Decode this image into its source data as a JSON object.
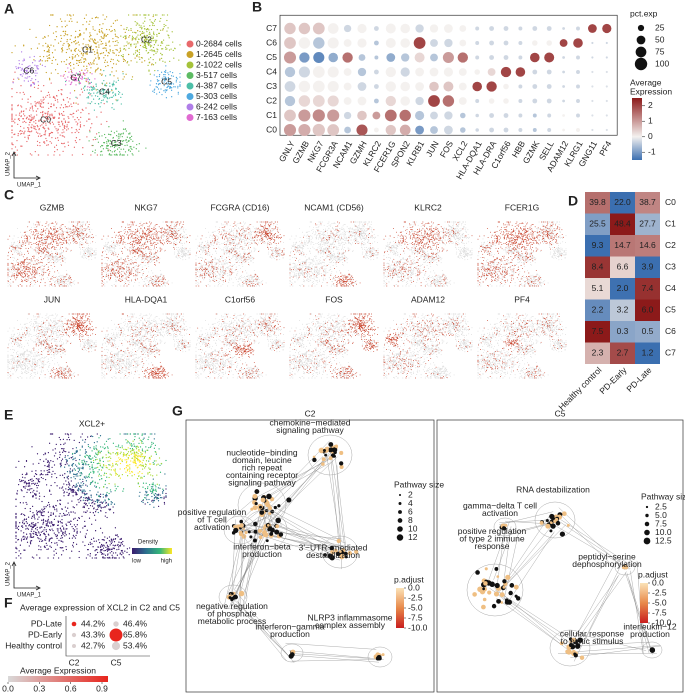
{
  "panels": {
    "A": {
      "label": "A",
      "clusters": [
        "C0",
        "C1",
        "C2",
        "C3",
        "C4",
        "C5",
        "C6",
        "C7"
      ],
      "legend": [
        "0-2684 cells",
        "1-2645 cells",
        "2-1022 cells",
        "3-517 cells",
        "4-387 cells",
        "5-303 cells",
        "6-242 cells",
        "7-163 cells"
      ],
      "colors": [
        "#e8696b",
        "#c9a227",
        "#a5c23a",
        "#5dbb63",
        "#4dbfa8",
        "#4ea9e0",
        "#b07ee8",
        "#e06ad1"
      ],
      "x_label": "UMAP_1",
      "y_label": "UMAP_2"
    },
    "B": {
      "label": "B",
      "genes": [
        "GNLY",
        "GZMB",
        "NKG7",
        "FCGR3A",
        "NCAM1",
        "GZMH",
        "KLRC2",
        "FCER1G",
        "SPON2",
        "KLRB1",
        "JUN",
        "FOS",
        "XCL2",
        "HLA-DQA1",
        "HLA-DRA",
        "C1orf56",
        "HBB",
        "GZMK",
        "SELL",
        "ADAM12",
        "KLRG1",
        "GNG11",
        "PF4"
      ],
      "rows": [
        "C0",
        "C1",
        "C2",
        "C3",
        "C4",
        "C5",
        "C6",
        "C7"
      ],
      "expression": [
        [
          1,
          0.8,
          0.5,
          0.5,
          -0.5,
          1.8,
          0,
          0.5,
          0.8,
          -1,
          -0.5,
          -0.3,
          -0.5,
          -0.3,
          -0.3,
          -0.3,
          -0.3,
          -0.5,
          -0.3,
          0,
          0,
          -0.2,
          -0.2
        ],
        [
          0.5,
          1,
          1.2,
          1,
          -0.3,
          0.5,
          1,
          1.5,
          1.5,
          -0.5,
          -0.3,
          -0.3,
          -0.5,
          -0.3,
          -0.3,
          -0.3,
          -0.3,
          -0.5,
          -0.3,
          0,
          -0.3,
          -0.2,
          -0.2
        ],
        [
          -0.5,
          0.3,
          0.3,
          0.3,
          0,
          0,
          -0.5,
          0.3,
          0,
          -0.3,
          2,
          1.5,
          0,
          -0.3,
          0,
          0,
          -0.3,
          -0.3,
          -0.3,
          -0.3,
          -0.3,
          -0.2,
          -0.2
        ],
        [
          -0.3,
          0,
          0,
          0,
          0,
          -0.3,
          -0.3,
          0,
          0,
          0,
          0.5,
          0.5,
          0,
          2,
          2,
          0,
          -0.3,
          -0.3,
          -0.3,
          -0.3,
          -0.3,
          -0.2,
          -0.2
        ],
        [
          -0.5,
          -0.3,
          0,
          0,
          0,
          -0.5,
          -0.3,
          0,
          -0.3,
          0,
          0,
          0,
          0,
          0,
          0.3,
          2,
          2,
          -0.3,
          -0.3,
          -0.3,
          -0.3,
          -0.2,
          -0.2
        ],
        [
          1,
          -1,
          -1.2,
          -0.8,
          1.5,
          -0.5,
          -0.5,
          -0.8,
          -0.5,
          0.3,
          -0.5,
          1,
          1.5,
          -0.3,
          -0.3,
          -0.3,
          -0.3,
          2,
          2,
          -0.3,
          -0.3,
          -0.3,
          -0.3
        ],
        [
          0.5,
          0,
          -0.5,
          0,
          0,
          0,
          -0.5,
          0,
          0,
          2,
          -0.3,
          -0.3,
          0,
          -0.3,
          -0.3,
          -0.3,
          -0.3,
          0,
          0,
          2,
          2,
          -0.3,
          -0.3
        ],
        [
          0.5,
          0.5,
          0.5,
          0,
          -0.3,
          0,
          -0.3,
          0,
          0,
          -0.3,
          0,
          0,
          0,
          -0.3,
          -0.3,
          -0.3,
          -0.3,
          -0.3,
          -0.3,
          -0.3,
          -0.3,
          2,
          2
        ]
      ],
      "pct_exp": [
        [
          95,
          95,
          98,
          90,
          30,
          80,
          15,
          70,
          75,
          50,
          40,
          50,
          20,
          8,
          15,
          15,
          10,
          10,
          10,
          5,
          10,
          3,
          3
        ],
        [
          90,
          95,
          98,
          95,
          35,
          60,
          40,
          90,
          85,
          55,
          40,
          45,
          20,
          8,
          15,
          15,
          10,
          10,
          10,
          5,
          10,
          3,
          3
        ],
        [
          70,
          85,
          90,
          80,
          40,
          50,
          15,
          70,
          60,
          45,
          90,
          85,
          40,
          10,
          20,
          20,
          10,
          15,
          15,
          5,
          10,
          3,
          3
        ],
        [
          75,
          85,
          90,
          80,
          40,
          50,
          15,
          70,
          60,
          50,
          60,
          65,
          40,
          60,
          70,
          20,
          10,
          15,
          15,
          5,
          10,
          3,
          3
        ],
        [
          70,
          80,
          90,
          80,
          40,
          45,
          15,
          70,
          55,
          50,
          50,
          55,
          40,
          20,
          40,
          70,
          60,
          15,
          15,
          5,
          10,
          3,
          3
        ],
        [
          95,
          70,
          80,
          60,
          70,
          30,
          10,
          50,
          45,
          65,
          40,
          80,
          70,
          10,
          15,
          15,
          10,
          60,
          65,
          5,
          10,
          3,
          3
        ],
        [
          90,
          85,
          85,
          80,
          40,
          55,
          15,
          65,
          60,
          90,
          40,
          45,
          30,
          10,
          15,
          15,
          10,
          20,
          20,
          40,
          60,
          3,
          3
        ],
        [
          85,
          85,
          90,
          75,
          35,
          55,
          15,
          65,
          60,
          45,
          45,
          50,
          30,
          10,
          15,
          15,
          10,
          15,
          15,
          5,
          10,
          50,
          55
        ]
      ],
      "size_legend_title": "pct.exp",
      "size_ticks": [
        25,
        50,
        75,
        100
      ],
      "color_legend_title": [
        "Average",
        "Expression"
      ],
      "color_ticks": [
        2,
        1,
        0,
        -1
      ],
      "color_lim": [
        -1.5,
        2.5
      ]
    },
    "C": {
      "label": "C",
      "genes": [
        "GZMB",
        "NKG7",
        "FCGRA (CD16)",
        "NCAM1 (CD56)",
        "KLRC2",
        "FCER1G",
        "JUN",
        "HLA-DQA1",
        "C1orf56",
        "FOS",
        "ADAM12",
        "PF4"
      ]
    },
    "D": {
      "label": "D",
      "columns": [
        "Healthy control",
        "PD-Early",
        "PD-Late"
      ],
      "rows": [
        "C0",
        "C1",
        "C2",
        "C3",
        "C4",
        "C5",
        "C6",
        "C7"
      ],
      "values": [
        [
          39.8,
          22,
          38.7
        ],
        [
          25.5,
          48.4,
          27.7
        ],
        [
          9.3,
          14.7,
          14.6
        ],
        [
          8.4,
          6.6,
          3.9
        ],
        [
          5.1,
          2,
          7.4
        ],
        [
          2.2,
          3.2,
          6
        ],
        [
          7.5,
          0.3,
          0.5
        ],
        [
          2.3,
          2.7,
          1.2
        ]
      ],
      "value_labels": [
        [
          "39.8",
          "22.0",
          "38.7"
        ],
        [
          "25.5",
          "48.4",
          "27.7"
        ],
        [
          "9.3",
          "14.7",
          "14.6"
        ],
        [
          "8.4",
          "6.6",
          "3.9"
        ],
        [
          "5.1",
          "2.0",
          "7.4"
        ],
        [
          "2.2",
          "3.2",
          "6.0"
        ],
        [
          "7.5",
          "0.3",
          "0.5"
        ],
        [
          "2.3",
          "2.7",
          "1.2"
        ]
      ]
    },
    "E": {
      "label": "E",
      "title": "XCL2+",
      "legend_title": "Density",
      "low": "low",
      "high": "high",
      "x_label": "UMAP_1",
      "y_label": "UMAP_2"
    },
    "F": {
      "label": "F",
      "title": "Average expression of XCL2 in C2 and C5",
      "groups": [
        "PD-Late",
        "PD-Early",
        "Healthy control"
      ],
      "columns": [
        "C2",
        "C5"
      ],
      "values": [
        [
          44.2,
          46.4
        ],
        [
          43.3,
          65.8
        ],
        [
          42.7,
          53.4
        ]
      ],
      "value_labels": [
        [
          "44.2%",
          "46.4%"
        ],
        [
          "43.3%",
          "65.8%"
        ],
        [
          "42.7%",
          "53.4%"
        ]
      ],
      "avg_expression": [
        [
          0.9,
          0.05
        ],
        [
          0.05,
          0.9
        ],
        [
          0.05,
          0.05
        ]
      ],
      "color_legend_title": "Average Expression",
      "color_ticks": [
        {
          "value": 0,
          "label": "0.0"
        },
        0.3,
        0.6,
        0.9
      ]
    },
    "G": {
      "label": "G",
      "networks": [
        {
          "title": "C2",
          "terms": [
            [
              "chemokine−mediated",
              "signaling pathway"
            ],
            [
              "nucleotide−binding",
              "domain, leucine",
              "rich repeat",
              "containing receptor",
              "signaling pathway"
            ],
            [
              "positive regulation",
              "of T cell",
              "activation"
            ],
            [
              "interferon−beta",
              "production"
            ],
            [
              "3'−UTR−mediated",
              "destabilization"
            ],
            [
              "negative regulation",
              "of phosphate",
              "metabolic process"
            ],
            [
              "interferon−gamma",
              "production"
            ],
            [
              "NLRP3 inflammasome",
              "complex assembly"
            ]
          ],
          "size_title": "Pathway size",
          "size_ticks": [
            2,
            4,
            6,
            8,
            10,
            12
          ],
          "color_title": "p.adjust",
          "color_ticks": [
            {
              "value": 0,
              "label": "0.0"
            },
            -2.5,
            {
              "value": -5,
              "label": "-5.0"
            },
            -7.5,
            {
              "value": -10,
              "label": "-10.0"
            }
          ]
        },
        {
          "title": "C5",
          "terms": [
            [
              "RNA destabilization"
            ],
            [
              "gamma−delta T cell",
              "activation"
            ],
            [
              "positive regulation",
              "of type 2 immune",
              "response"
            ],
            [
              "peptidyl−serine",
              "dephosphorylation"
            ],
            [
              "cellular response",
              "to biotic stimulus"
            ],
            [
              "interleukin−12",
              "production"
            ]
          ],
          "size_title": "Pathway size",
          "size_ticks": [
            2.5,
            {
              "value": 5,
              "label": "5.0"
            },
            7.5,
            {
              "value": 10,
              "label": "10.0"
            },
            12.5
          ],
          "color_title": "p.adjust",
          "color_ticks": [
            {
              "value": 0,
              "label": "0.0"
            },
            -2.5,
            {
              "value": -5,
              "label": "-5.0"
            },
            -7.5,
            {
              "value": -10,
              "label": "-10.0"
            }
          ]
        }
      ]
    }
  }
}
